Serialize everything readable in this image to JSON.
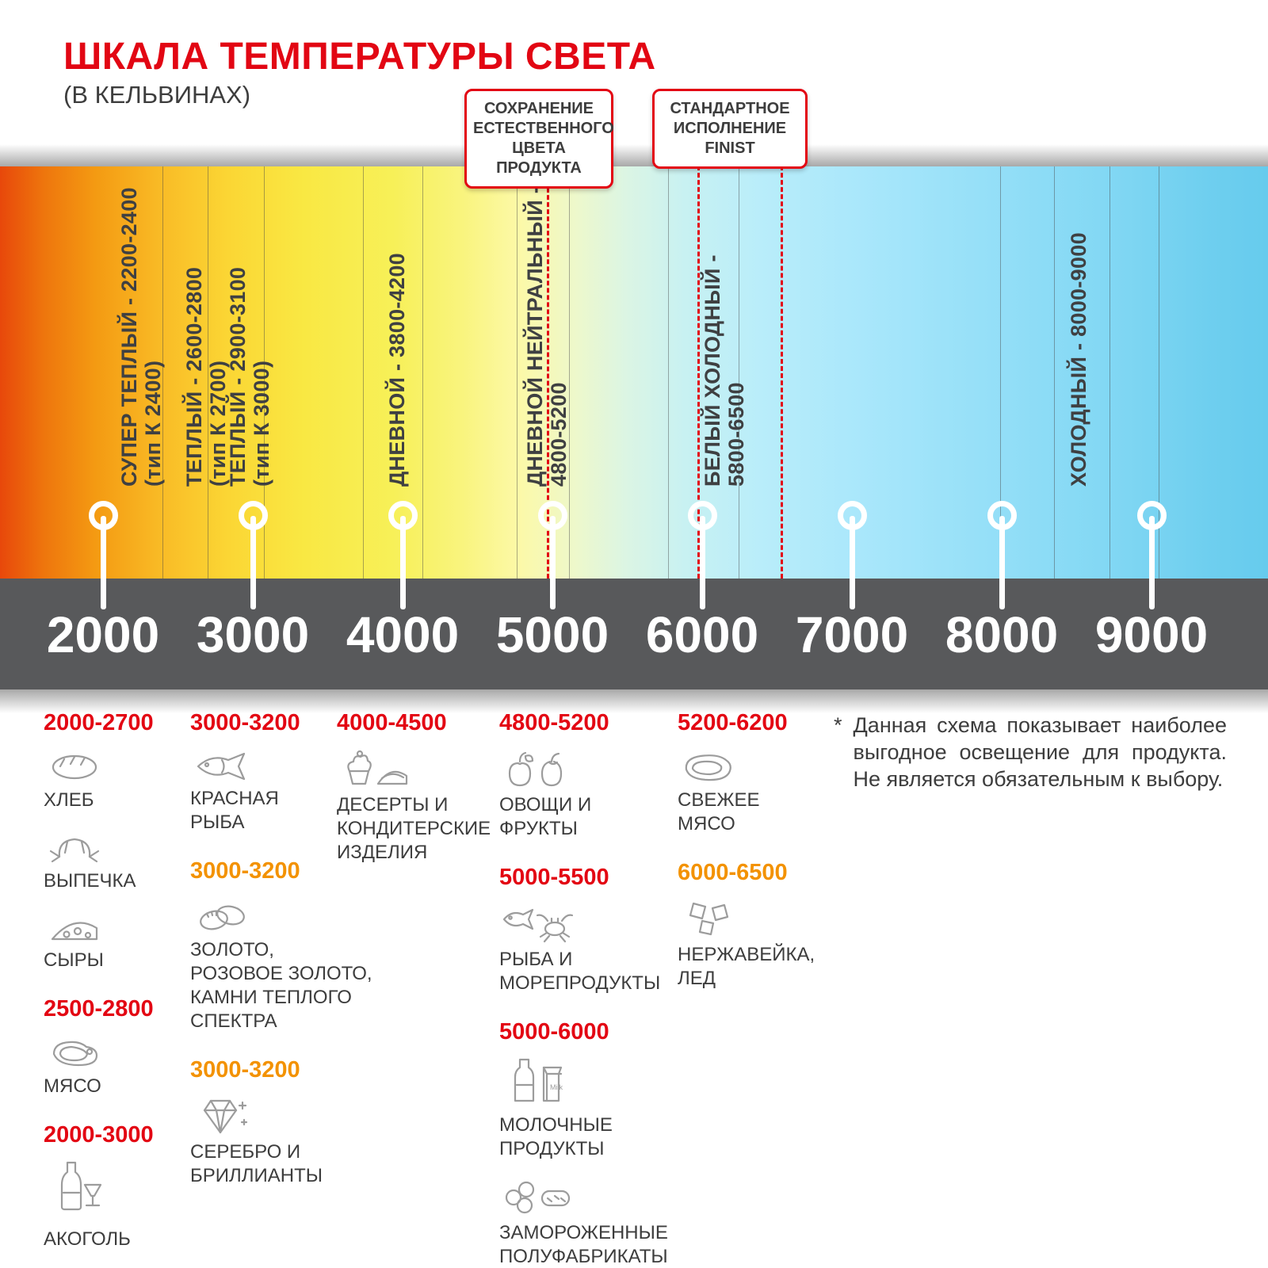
{
  "header": {
    "title": "ШКАЛА ТЕМПЕРАТУРЫ СВЕТА",
    "subtitle": "(В КЕЛЬВИНАХ)"
  },
  "colors": {
    "red": "#e30613",
    "orange": "#f39200",
    "axis_band": "#58595b",
    "text_dark": "#3d3d3d"
  },
  "callouts": [
    {
      "text": "СОХРАНЕНИЕ ЕСТЕСТВЕННОГО ЦВЕТА ПРОДУКТА"
    },
    {
      "text": "СТАНДАРТНОЕ ИСПОЛНЕНИЕ FINIST"
    }
  ],
  "scale": {
    "ticks": [
      "2000",
      "3000",
      "4000",
      "5000",
      "6000",
      "7000",
      "8000",
      "9000"
    ],
    "zones": [
      {
        "label": "СУПЕР ТЕПЛЫЙ - 2200-2400",
        "sub": "(тип К 2400)"
      },
      {
        "label": "ТЕПЛЫЙ - 2600-2800",
        "sub": "(тип К 2700)"
      },
      {
        "label": "ТЕПЛЫЙ - 2900-3100",
        "sub": "(тип К 3000)"
      },
      {
        "label": "ДНЕВНОЙ - 3800-4200",
        "sub": ""
      },
      {
        "label": "ДНЕВНОЙ НЕЙТРАЛЬНЫЙ -",
        "sub": "4800-5200"
      },
      {
        "label": "БЕЛЫЙ ХОЛОДНЫЙ -",
        "sub": "5800-6500"
      },
      {
        "label": "ХОЛОДНЫЙ - 8000-9000",
        "sub": ""
      }
    ]
  },
  "legend": {
    "columns": [
      {
        "groups": [
          {
            "range": "2000-2700",
            "color": "red",
            "items": [
              {
                "icon": "bread",
                "label": "ХЛЕБ"
              },
              {
                "icon": "croissant",
                "label": "ВЫПЕЧКА"
              },
              {
                "icon": "cheese",
                "label": "СЫРЫ"
              }
            ]
          },
          {
            "range": "2500-2800",
            "color": "red",
            "items": [
              {
                "icon": "meat",
                "label": "МЯСО"
              }
            ]
          },
          {
            "range": "2000-3000",
            "color": "red",
            "items": [
              {
                "icon": "alcohol",
                "label": "АКОГОЛЬ"
              }
            ]
          }
        ]
      },
      {
        "groups": [
          {
            "range": "3000-3200",
            "color": "red",
            "items": [
              {
                "icon": "fish",
                "label": "КРАСНАЯ\nРЫБА"
              }
            ]
          },
          {
            "range": "3000-3200",
            "color": "orange",
            "items": [
              {
                "icon": "rings",
                "label": "ЗОЛОТО,\nРОЗОВОЕ ЗОЛОТО,\nКАМНИ ТЕПЛОГО\nСПЕКТРА"
              }
            ]
          },
          {
            "range": "3000-3200",
            "color": "orange",
            "items": [
              {
                "icon": "diamond",
                "label": "СЕРЕБРО И\nБРИЛЛИАНТЫ"
              }
            ]
          }
        ]
      },
      {
        "groups": [
          {
            "range": "4000-4500",
            "color": "red",
            "items": [
              {
                "icon": "dessert",
                "label": "ДЕСЕРТЫ И\nКОНДИТЕРСКИЕ\nИЗДЕЛИЯ"
              }
            ]
          }
        ]
      },
      {
        "groups": [
          {
            "range": "4800-5200",
            "color": "red",
            "items": [
              {
                "icon": "vegetables",
                "label": "ОВОЩИ И\nФРУКТЫ"
              }
            ]
          },
          {
            "range": "5000-5500",
            "color": "red",
            "items": [
              {
                "icon": "seafood",
                "label": "РЫБА И\nМОРЕПРОДУКТЫ"
              }
            ]
          },
          {
            "range": "5000-6000",
            "color": "red",
            "items": [
              {
                "icon": "milk",
                "label": "МОЛОЧНЫЕ ПРОДУКТЫ"
              },
              {
                "icon": "frozen",
                "label": "ЗАМОРОЖЕННЫЕ\nПОЛУФАБРИКАТЫ"
              }
            ]
          }
        ]
      },
      {
        "groups": [
          {
            "range": "5200-6200",
            "color": "red",
            "items": [
              {
                "icon": "fresh-meat",
                "label": "СВЕЖЕЕ\nМЯСО"
              }
            ]
          },
          {
            "range": "6000-6500",
            "color": "orange",
            "items": [
              {
                "icon": "ice",
                "label": "НЕРЖАВЕЙКА,\nЛЕД"
              }
            ]
          }
        ]
      }
    ]
  },
  "footnote": {
    "marker": "*",
    "text": "Данная схема показывает наиболее выгодное освещение для продукта. Не является обязательным к выбору."
  }
}
